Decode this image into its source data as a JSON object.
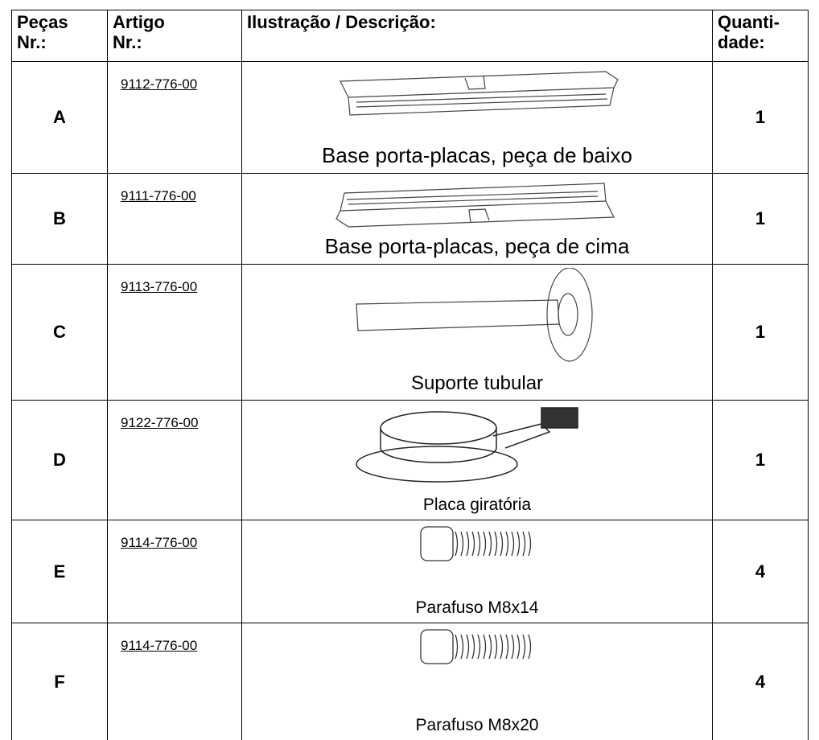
{
  "table": {
    "headers": [
      "Peças\nNr.:",
      "Artigo\nNr.:",
      "Ilustração / Descrição:",
      "Quanti-\ndade:"
    ],
    "rows": [
      [
        "A",
        "9112-776-00",
        "Base porta-placas, peça de baixo",
        1
      ],
      [
        "B",
        "9111-776-00",
        "Base porta-placas, peça de cima",
        1
      ],
      [
        "C",
        "9113-776-00",
        "Suporte tubular",
        1
      ],
      [
        "D",
        "9122-776-00",
        "Placa giratória",
        1
      ],
      [
        "E",
        "9114-776-00",
        "Parafuso M8x14",
        4
      ],
      [
        "F",
        "9114-776-00",
        "Parafuso M8x20",
        4
      ]
    ]
  }
}
